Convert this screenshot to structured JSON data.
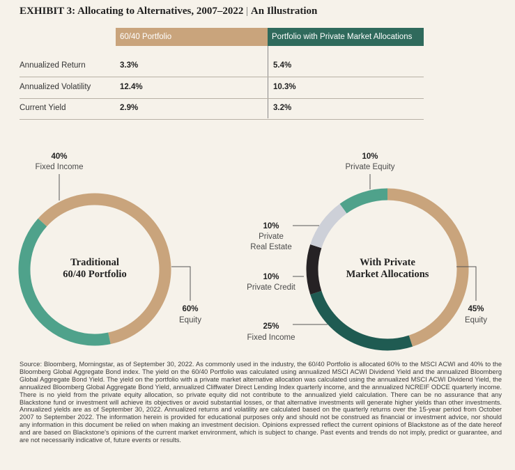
{
  "title": "EXHIBIT 3: Allocating to Alternatives, 2007–2022",
  "title_sep": " | ",
  "subtitle": "An Illustration",
  "table": {
    "col1": "60/40 Portfolio",
    "col2": "Portfolio with Private Market Allocations",
    "rows": [
      {
        "label": "Annualized Return",
        "v1": "3.3%",
        "v2": "5.4%"
      },
      {
        "label": "Annualized Volatility",
        "v1": "12.4%",
        "v2": "10.3%"
      },
      {
        "label": "Current Yield",
        "v1": "2.9%",
        "v2": "3.2%"
      }
    ]
  },
  "chart_data": [
    {
      "type": "pie",
      "donut": true,
      "title_lines": [
        "Traditional",
        "60/40 Portfolio"
      ],
      "slices": [
        {
          "name": "Fixed Income",
          "value": 40,
          "pct_label": "40%",
          "color": "#4fa28b"
        },
        {
          "name": "Equity",
          "value": 60,
          "pct_label": "60%",
          "color": "#c9a47c"
        }
      ]
    },
    {
      "type": "pie",
      "donut": true,
      "title_lines": [
        "With Private",
        "Market Allocations"
      ],
      "slices": [
        {
          "name": "Private Equity",
          "value": 10,
          "pct_label": "10%",
          "color": "#4fa28b"
        },
        {
          "name": "Equity",
          "value": 45,
          "pct_label": "45%",
          "color": "#c9a47c"
        },
        {
          "name": "Fixed Income",
          "value": 25,
          "pct_label": "25%",
          "color": "#1f5b52"
        },
        {
          "name": "Private Credit",
          "value": 10,
          "pct_label": "10%",
          "color": "#262224"
        },
        {
          "name": "Private Real Estate",
          "name_lines": [
            "Private",
            "Real Estate"
          ],
          "value": 10,
          "pct_label": "10%",
          "color": "#cdd0d8"
        }
      ]
    }
  ],
  "source_text": "Source: Bloomberg, Morningstar, as of September 30, 2022. As commonly used in the industry, the 60/40 Portfolio is allocated 60% to the MSCI ACWI and 40% to the Bloomberg Global Aggregate Bond index. The yield on the 60/40 Portfolio was calculated using annualized MSCI ACWI Dividend Yield and the annualized Bloomberg Global Aggregate Bond Yield. The yield on the portfolio with a private market alternative allocation was calculated using the annualized MSCI ACWI Dividend Yield, the annualized Bloomberg Global Aggregate Bond Yield, annualized Cliffwater Direct Lending Index quarterly income, and the annualized NCREIF ODCE quarterly income. There is no yield from the private equity allocation, so private equity did not contribute to the annualized yield calculation. There can be no assurance that any Blackstone fund or investment will achieve its objectives or avoid substantial losses, or that alternative investments will generate higher yields than other investments. Annualized yields are as of September 30, 2022. Annualized returns and volatility are calculated based on the quarterly returns over the 15-year period from October 2007 to September 2022. The information herein is provided for educational purposes only and should not be construed as financial or investment advice, nor should any information in this document be relied on when making an investment decision. Opinions expressed reflect the current opinions of Blackstone as of the date hereof and are based on Blackstone's opinions of the current market environment, which is subject to change. Past events and trends do not imply, predict or guarantee, and are not necessarily indicative of, future events or results."
}
